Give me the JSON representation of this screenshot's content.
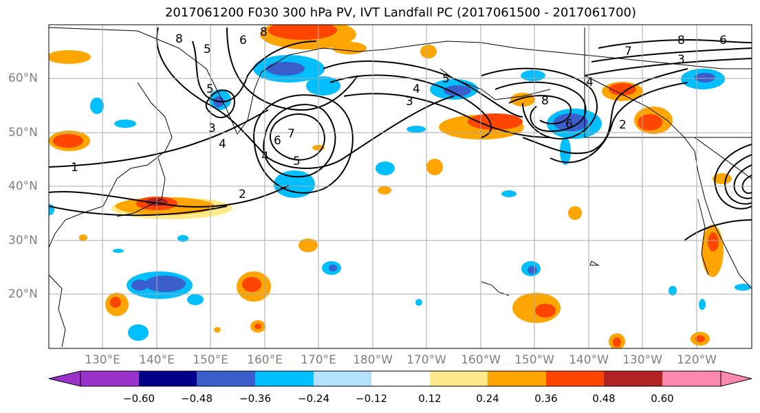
{
  "title": "2017061200 F030 300 hPa PV, IVT Landfall PC (2017061500 - 2017061700)",
  "lat_labels": [
    "60°N",
    "50°N",
    "40°N",
    "30°N",
    "20°N"
  ],
  "lon_labels": [
    "130°E",
    "140°E",
    "150°E",
    "160°E",
    "170°E",
    "180°W",
    "170°W",
    "160°W",
    "150°W",
    "140°W",
    "130°W",
    "120°W"
  ],
  "colorbar": {
    "labels": [
      "−0.60",
      "−0.48",
      "−0.36",
      "−0.24",
      "−0.12",
      "0.12",
      "0.24",
      "0.36",
      "0.48",
      "0.60"
    ],
    "colors": [
      "#9933cc",
      "#00008b",
      "#3a5fcd",
      "#00bfff",
      "#b2e2ff",
      "#ffffff",
      "#ffe98a",
      "#ffa500",
      "#ff4500",
      "#b22222",
      "#ff88b0"
    ]
  },
  "contour_labels": [
    "1",
    "2",
    "3",
    "4",
    "5",
    "6",
    "7",
    "8"
  ],
  "colors": {
    "land_outline": "#000000",
    "grid": "#a9a9a9",
    "axis_label": "#7f7f7f",
    "contour": "#000000"
  }
}
